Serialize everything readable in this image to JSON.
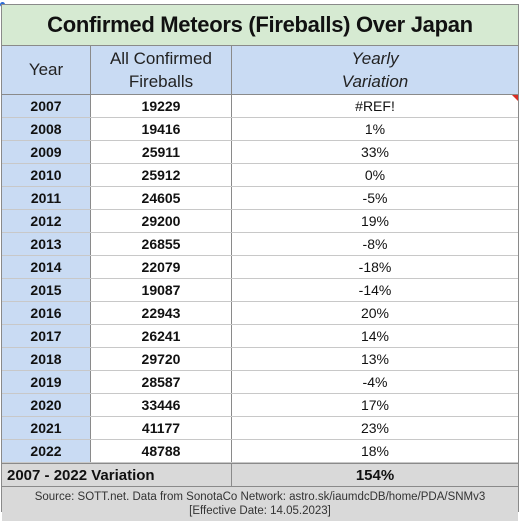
{
  "title": "Confirmed Meteors (Fireballs) Over Japan",
  "header": {
    "year": "Year",
    "all_line1": "All Confirmed",
    "all_line2": "Fireballs",
    "var_line1": "Yearly",
    "var_line2": "Variation"
  },
  "rows": [
    {
      "year": "2007",
      "count": "19229",
      "variation": "#REF!"
    },
    {
      "year": "2008",
      "count": "19416",
      "variation": "1%"
    },
    {
      "year": "2009",
      "count": "25911",
      "variation": "33%"
    },
    {
      "year": "2010",
      "count": "25912",
      "variation": "0%"
    },
    {
      "year": "2011",
      "count": "24605",
      "variation": "-5%"
    },
    {
      "year": "2012",
      "count": "29200",
      "variation": "19%"
    },
    {
      "year": "2013",
      "count": "26855",
      "variation": "-8%"
    },
    {
      "year": "2014",
      "count": "22079",
      "variation": "-18%"
    },
    {
      "year": "2015",
      "count": "19087",
      "variation": "-14%"
    },
    {
      "year": "2016",
      "count": "22943",
      "variation": "20%"
    },
    {
      "year": "2017",
      "count": "26241",
      "variation": "14%"
    },
    {
      "year": "2018",
      "count": "29720",
      "variation": "13%"
    },
    {
      "year": "2019",
      "count": "28587",
      "variation": "-4%"
    },
    {
      "year": "2020",
      "count": "33446",
      "variation": "17%"
    },
    {
      "year": "2021",
      "count": "41177",
      "variation": "23%"
    },
    {
      "year": "2022",
      "count": "48788",
      "variation": "18%"
    }
  ],
  "total": {
    "label": "2007 - 2022 Variation",
    "value": "154%"
  },
  "footer": {
    "line1": "Source: SOTT.net. Data from SonotaCo Network: astro.sk/iaumdcDB/home/PDA/SNMv3",
    "line2": "[Effective Date: 14.05.2023]"
  },
  "colors": {
    "title_bg": "#d6ead2",
    "header_bg": "#c9dbf3",
    "footer_bg": "#d9d9d9",
    "error_flag": "#d93025"
  }
}
